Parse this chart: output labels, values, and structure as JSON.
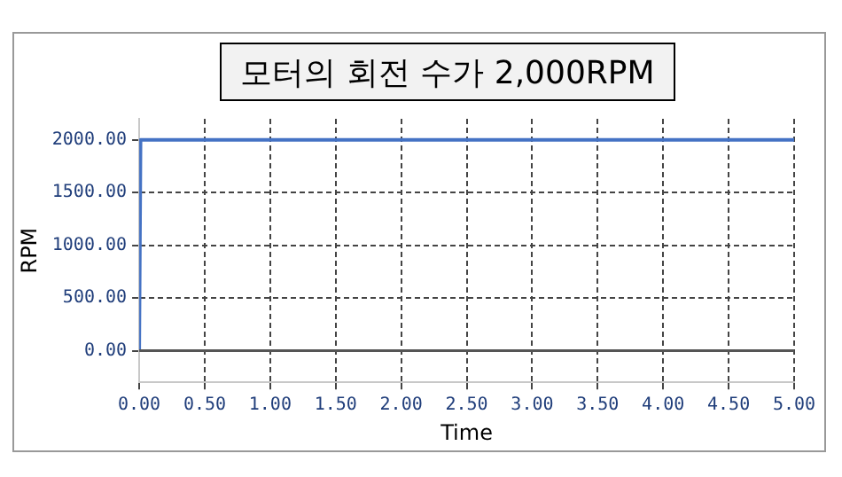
{
  "chart_data": {
    "type": "line",
    "title": "모터의 회전 수가 2,000RPM",
    "xlabel": "Time",
    "ylabel": "RPM",
    "x": [
      0,
      0.01,
      5
    ],
    "series": [
      {
        "color": "#4472c4",
        "values": [
          0,
          2000,
          2000
        ]
      }
    ],
    "xlim": [
      0,
      5
    ],
    "xticks": [
      {
        "value": 0,
        "label": "0.00"
      },
      {
        "value": 0.5,
        "label": "0.50"
      },
      {
        "value": 1,
        "label": "1.00"
      },
      {
        "value": 1.5,
        "label": "1.50"
      },
      {
        "value": 2,
        "label": "2.00"
      },
      {
        "value": 2.5,
        "label": "2.50"
      },
      {
        "value": 3,
        "label": "3.00"
      },
      {
        "value": 3.5,
        "label": "3.50"
      },
      {
        "value": 4,
        "label": "4.00"
      },
      {
        "value": 4.5,
        "label": "4.50"
      },
      {
        "value": 5,
        "label": "5.00"
      }
    ],
    "ylim": [
      -300,
      2200
    ],
    "yticks": [
      {
        "value": 0,
        "label": "0.00"
      },
      {
        "value": 500,
        "label": "500.00"
      },
      {
        "value": 1000,
        "label": "1000.00"
      },
      {
        "value": 1500,
        "label": "1500.00"
      },
      {
        "value": 2000,
        "label": "2000.00"
      }
    ],
    "ref_lines": [
      {
        "axis": "y",
        "value": 0,
        "color": "#555555",
        "line_style": "solid"
      }
    ],
    "grid": true,
    "legend": false,
    "marker": "none",
    "line_style": "solid"
  }
}
